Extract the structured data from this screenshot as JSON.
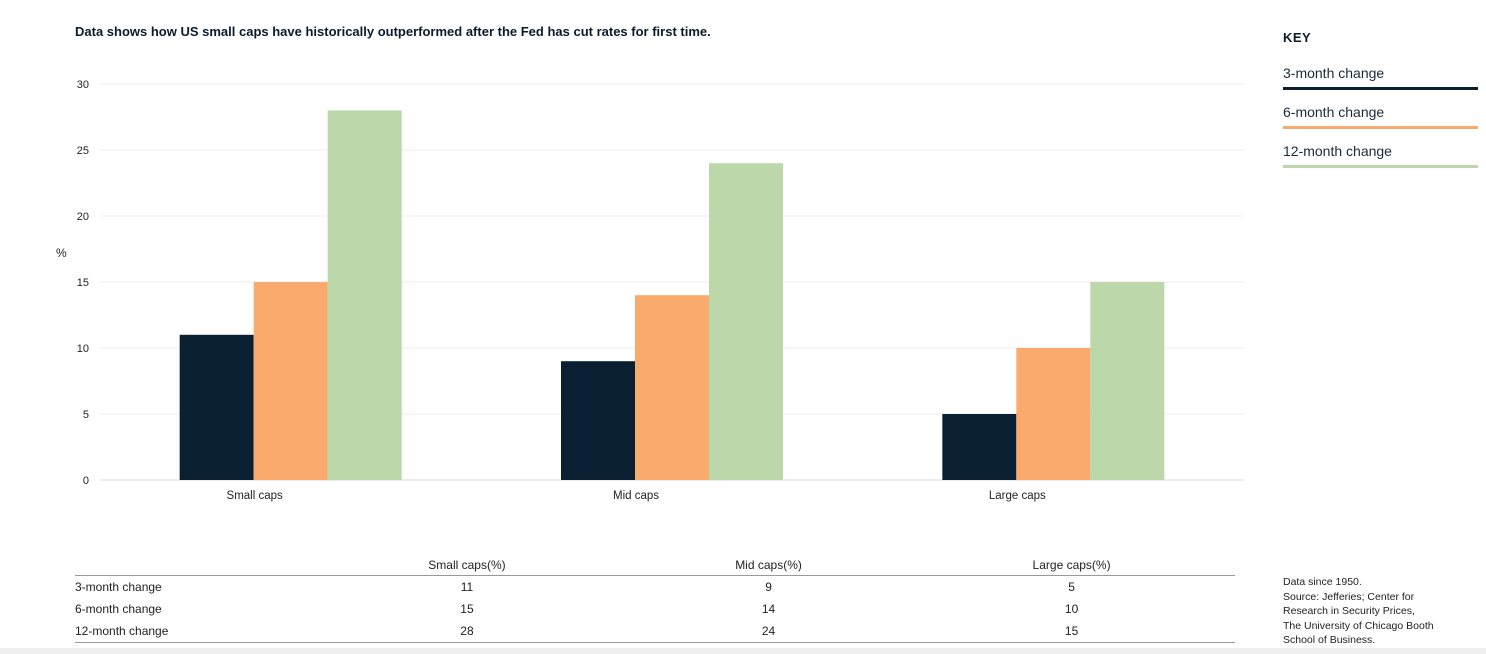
{
  "title": "Data shows how US small caps have historically outperformed after the Fed has cut rates for first time.",
  "chart_data": {
    "type": "bar",
    "title": "Data shows how US small caps have historically outperformed after the Fed has cut rates for first time.",
    "ylabel": "%",
    "xlabel": "",
    "ylim": [
      0,
      30
    ],
    "yticks": [
      0,
      5,
      10,
      15,
      20,
      25,
      30
    ],
    "grid": true,
    "legend_position": "right",
    "categories": [
      "Small caps",
      "Mid caps",
      "Large caps"
    ],
    "series": [
      {
        "name": "3-month change",
        "color": "#0b1f33",
        "values": [
          11,
          9,
          5
        ]
      },
      {
        "name": "6-month change",
        "color": "#fbaa6d",
        "values": [
          15,
          14,
          10
        ]
      },
      {
        "name": "12-month change",
        "color": "#bcd7aa",
        "values": [
          28,
          24,
          15
        ]
      }
    ]
  },
  "key": {
    "heading": "KEY",
    "items": [
      {
        "label": "3-month change",
        "color": "#0b1f33"
      },
      {
        "label": "6-month change",
        "color": "#fbaa6d"
      },
      {
        "label": "12-month change",
        "color": "#bcd7aa"
      }
    ]
  },
  "table": {
    "headers": [
      "",
      "Small caps(%)",
      "Mid caps(%)",
      "Large caps(%)"
    ],
    "rows": [
      {
        "label": "3-month change",
        "values": [
          "11",
          "9",
          "5"
        ]
      },
      {
        "label": "6-month change",
        "values": [
          "15",
          "14",
          "10"
        ]
      },
      {
        "label": "12-month change",
        "values": [
          "28",
          "24",
          "15"
        ]
      }
    ]
  },
  "source": [
    "Data since 1950.",
    "Source: Jefferies; Center for",
    "Research in Security Prices,",
    "The University of Chicago Booth",
    "School of Business."
  ]
}
